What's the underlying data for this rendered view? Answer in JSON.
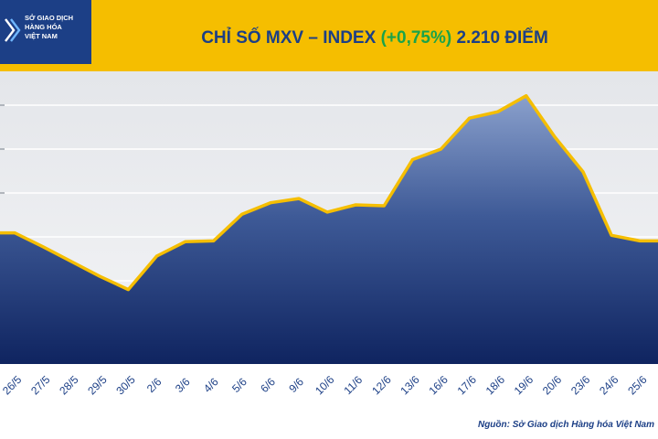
{
  "header": {
    "logo_lines": [
      "SỞ GIAO DỊCH",
      "HÀNG HÓA",
      "VIỆT NAM"
    ],
    "title_prefix": "CHỈ SỐ MXV – INDEX",
    "title_change": "(+0,75%)",
    "title_value": "2.210 ĐIỂM"
  },
  "source": "Nguồn: Sở Giao dịch Hàng hóa Việt Nam",
  "colors": {
    "header_bg": "#f5be00",
    "logo_bg": "#1c3f86",
    "title": "#1c3f86",
    "change_positive": "#1aa34a",
    "line": "#f5be00",
    "area_top": "#8aa0cc",
    "area_bottom": "#0f2460"
  },
  "chart_data": {
    "type": "area",
    "title": "CHỈ SỐ MXV – INDEX (+0,75%) 2.210 ĐIỂM",
    "categories": [
      "26/5",
      "27/5",
      "28/5",
      "29/5",
      "30/5",
      "2/6",
      "3/6",
      "4/6",
      "5/6",
      "6/6",
      "9/6",
      "10/6",
      "11/6",
      "12/6",
      "13/6",
      "16/6",
      "17/6",
      "18/6",
      "19/6",
      "20/6",
      "23/6",
      "24/6",
      "25/6"
    ],
    "values": [
      0.0,
      -0.33,
      -0.68,
      -1.03,
      -1.34,
      -0.55,
      -0.21,
      -0.19,
      0.44,
      0.71,
      0.81,
      0.49,
      0.66,
      0.64,
      1.73,
      1.98,
      2.71,
      2.86,
      3.24,
      2.27,
      1.44,
      -0.06,
      -0.19
    ],
    "y_axis_labels_visible": false,
    "grid": "horizontal",
    "series": [
      {
        "values": [
          0.0,
          -0.33,
          -0.68,
          -1.03,
          -1.34,
          -0.55,
          -0.21,
          -0.19,
          0.44,
          0.71,
          0.81,
          0.49,
          0.66,
          0.64,
          1.73,
          1.98,
          2.71,
          2.86,
          3.24,
          2.27,
          1.44,
          -0.06,
          -0.19
        ]
      }
    ]
  }
}
